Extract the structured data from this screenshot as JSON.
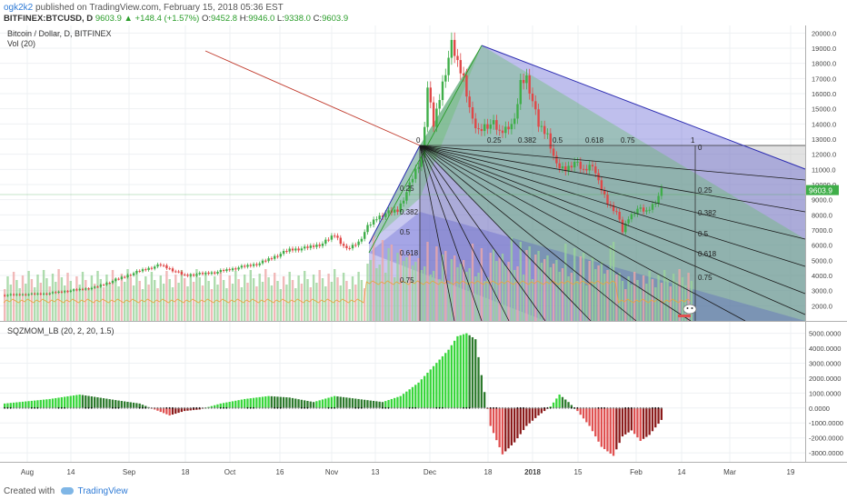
{
  "header": {
    "user": "ogk2k2",
    "published_text": "published on TradingView.com, February 15, 2018 05:36 EST",
    "symbol": "BITFINEX:BTCUSD, D",
    "last": "9603.9",
    "change": "▲ +148.4 (+1.57%)",
    "o_label": "O:",
    "o": "9452.8",
    "h_label": "H:",
    "h": "9946.0",
    "l_label": "L:",
    "l": "9338.0",
    "c_label": "C:",
    "c": "9603.9"
  },
  "footer": {
    "created_with": "Created with",
    "brand": "TradingView"
  },
  "chart_data": [
    {
      "type": "candlestick",
      "title": "Bitcoin / Dollar, D, BITFINEX",
      "indicator_label": "Vol (20)",
      "last_price_label": "9603.9",
      "ylim": [
        1000,
        20500
      ],
      "y_ticks": [
        2000,
        3000,
        4000,
        5000,
        6000,
        7000,
        8000,
        9000,
        10000,
        11000,
        12000,
        13000,
        14000,
        15000,
        16000,
        17000,
        18000,
        19000,
        20000
      ],
      "price_path": [
        [
          0,
          2700
        ],
        [
          14,
          2800
        ],
        [
          30,
          3200
        ],
        [
          45,
          4300
        ],
        [
          52,
          4700
        ],
        [
          60,
          4000
        ],
        [
          70,
          4200
        ],
        [
          85,
          4800
        ],
        [
          95,
          5700
        ],
        [
          100,
          5800
        ],
        [
          106,
          6100
        ],
        [
          110,
          6700
        ],
        [
          114,
          5700
        ],
        [
          118,
          6200
        ],
        [
          121,
          7200
        ],
        [
          124,
          7800
        ],
        [
          127,
          8100
        ],
        [
          131,
          8300
        ],
        [
          134,
          9500
        ],
        [
          137,
          10900
        ],
        [
          139,
          11700
        ],
        [
          141,
          16400
        ],
        [
          143,
          13900
        ],
        [
          146,
          16700
        ],
        [
          149,
          19200
        ],
        [
          151,
          18000
        ],
        [
          153,
          17100
        ],
        [
          156,
          14100
        ],
        [
          158,
          13500
        ],
        [
          160,
          13900
        ],
        [
          163,
          14000
        ],
        [
          165,
          13400
        ],
        [
          168,
          13900
        ],
        [
          170,
          14100
        ],
        [
          172,
          16700
        ],
        [
          174,
          17100
        ],
        [
          176,
          15500
        ],
        [
          178,
          13900
        ],
        [
          181,
          13300
        ],
        [
          184,
          11200
        ],
        [
          187,
          11000
        ],
        [
          190,
          11500
        ],
        [
          193,
          10900
        ],
        [
          196,
          11400
        ],
        [
          198,
          10100
        ],
        [
          201,
          8800
        ],
        [
          204,
          8200
        ],
        [
          206,
          6900
        ],
        [
          208,
          7800
        ],
        [
          211,
          8400
        ],
        [
          214,
          8200
        ],
        [
          217,
          8900
        ],
        [
          219,
          9600
        ]
      ],
      "gann_fan": {
        "levels": [
          "0",
          "0.25",
          "0.382",
          "0.5",
          "0.618",
          "0.75",
          "1"
        ],
        "box_levels": [
          "0.25",
          "0.382",
          "0.5",
          "0.618",
          "0.75"
        ]
      },
      "x_ticks": [
        "Aug",
        "14",
        "Sep",
        "18",
        "Oct",
        "16",
        "Nov",
        "13",
        "Dec",
        "18",
        "2018",
        "15",
        "Feb",
        "14",
        "Mar",
        "19"
      ]
    },
    {
      "type": "bar",
      "title": "SQZMOM_LB (20, 2, 20, 1.5)",
      "ylim": [
        -3600,
        5400
      ],
      "y_ticks": [
        -3000,
        -2000,
        -1000,
        0,
        1000,
        2000,
        3000,
        4000,
        5000
      ],
      "y_tick_labels": [
        "-3000.0000",
        "-2000.0000",
        "-1000.0000",
        "0.0000",
        "1000.0000",
        "2000.0000",
        "3000.0000",
        "4000.0000",
        "5000.0000"
      ],
      "momentum_path": [
        [
          0,
          300
        ],
        [
          15,
          600
        ],
        [
          25,
          900
        ],
        [
          38,
          500
        ],
        [
          45,
          300
        ],
        [
          50,
          -100
        ],
        [
          55,
          -500
        ],
        [
          60,
          -200
        ],
        [
          65,
          -100
        ],
        [
          72,
          300
        ],
        [
          80,
          600
        ],
        [
          88,
          800
        ],
        [
          95,
          700
        ],
        [
          103,
          400
        ],
        [
          110,
          800
        ],
        [
          118,
          600
        ],
        [
          126,
          400
        ],
        [
          132,
          800
        ],
        [
          138,
          1700
        ],
        [
          143,
          2800
        ],
        [
          148,
          3900
        ],
        [
          151,
          4800
        ],
        [
          154,
          5000
        ],
        [
          157,
          4600
        ],
        [
          159,
          2200
        ],
        [
          162,
          -1200
        ],
        [
          166,
          -3100
        ],
        [
          170,
          -2300
        ],
        [
          174,
          -1200
        ],
        [
          178,
          -500
        ],
        [
          182,
          100
        ],
        [
          185,
          900
        ],
        [
          188,
          400
        ],
        [
          191,
          -200
        ],
        [
          195,
          -1200
        ],
        [
          199,
          -2600
        ],
        [
          203,
          -3200
        ],
        [
          206,
          -1900
        ],
        [
          209,
          -1500
        ],
        [
          212,
          -2200
        ],
        [
          215,
          -1800
        ],
        [
          219,
          -800
        ]
      ]
    }
  ]
}
